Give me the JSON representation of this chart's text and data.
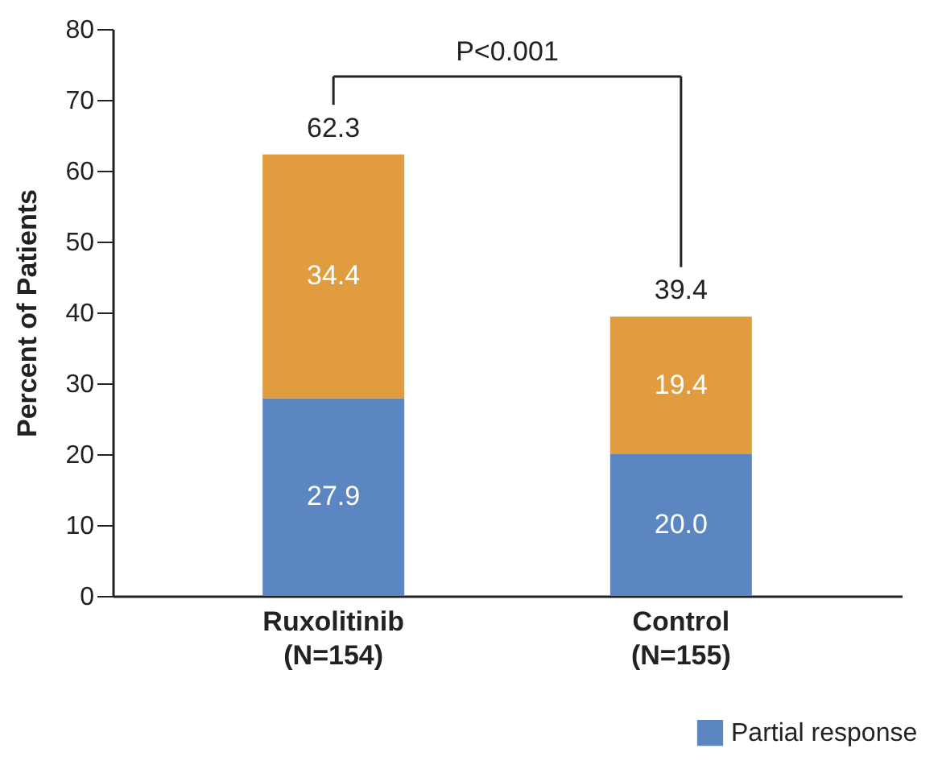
{
  "chart_data": {
    "type": "bar",
    "stacked": true,
    "categories": [
      "Ruxolitinib\n(N=154)",
      "Control\n(N=155)"
    ],
    "ylabel": "Percent of Patients",
    "series": [
      {
        "name": "Partial response",
        "color": "#5b86c2",
        "values": [
          27.9,
          20.0
        ],
        "value_labels": [
          "27.9",
          "20.0"
        ]
      },
      {
        "color": "#e09c3e",
        "values": [
          34.4,
          19.4
        ],
        "value_labels": [
          "34.4",
          "19.4"
        ]
      }
    ],
    "ylim": [
      0,
      80
    ],
    "yticks": [
      0,
      10,
      20,
      30,
      40,
      50,
      60,
      70,
      80
    ],
    "totals": [
      "62.3",
      "39.4"
    ],
    "annotations": [
      "P<0.001"
    ],
    "legend": "bottom right",
    "grid": false
  }
}
